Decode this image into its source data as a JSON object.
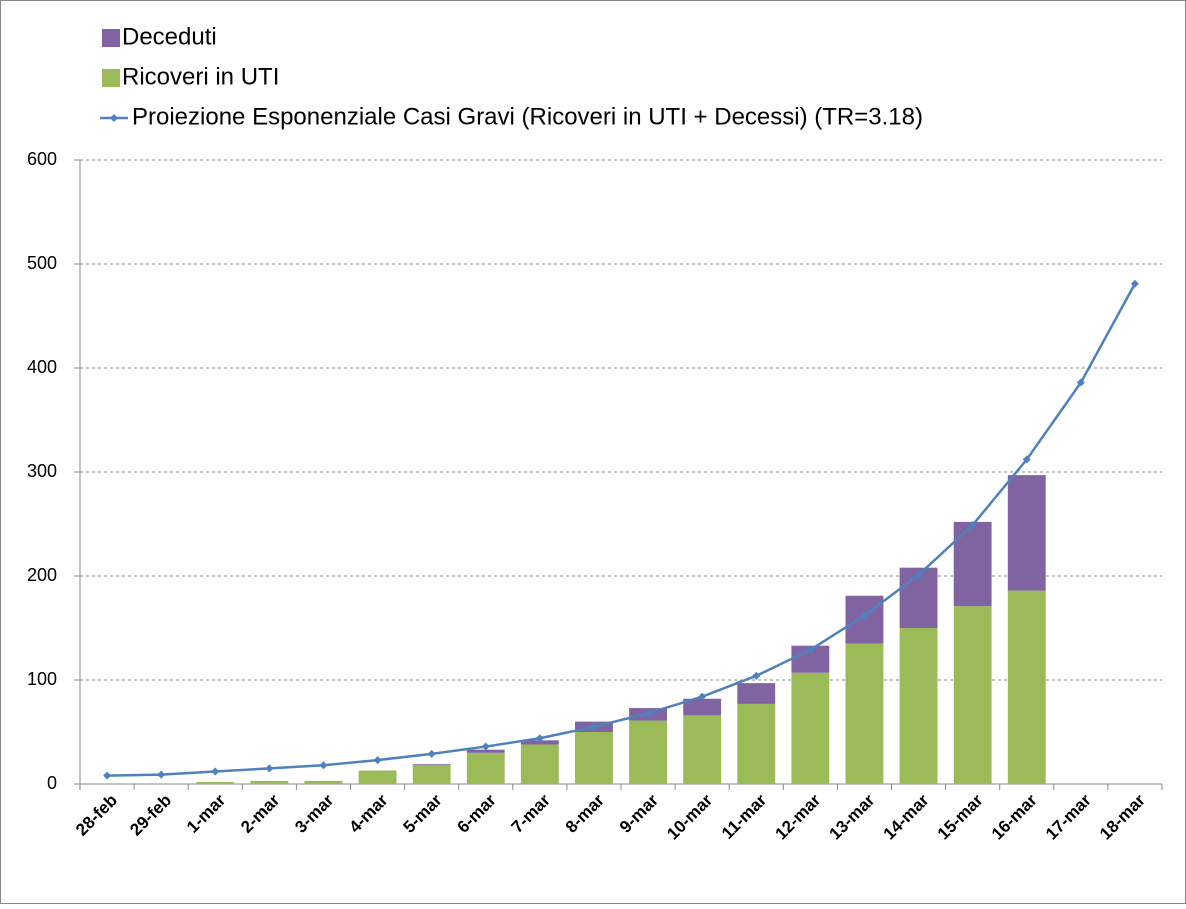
{
  "chart_data": {
    "type": "bar",
    "categories": [
      "28-feb",
      "29-feb",
      "1-mar",
      "2-mar",
      "3-mar",
      "4-mar",
      "5-mar",
      "6-mar",
      "7-mar",
      "8-mar",
      "9-mar",
      "10-mar",
      "11-mar",
      "12-mar",
      "13-mar",
      "14-mar",
      "15-mar",
      "16-mar",
      "17-mar",
      "18-mar"
    ],
    "series": [
      {
        "name": "Deceduti",
        "type": "bar",
        "color": "#8064a2",
        "values": [
          0,
          0,
          0,
          0,
          0,
          0,
          1,
          3,
          4,
          10,
          12,
          16,
          20,
          26,
          46,
          58,
          81,
          111,
          null,
          null
        ]
      },
      {
        "name": "Ricoveri in UTI",
        "type": "bar",
        "color": "#9bbb59",
        "values": [
          0,
          0,
          2,
          3,
          3,
          13,
          18,
          30,
          38,
          50,
          61,
          66,
          77,
          107,
          135,
          150,
          171,
          186,
          null,
          null
        ]
      },
      {
        "name": "Proiezione Esponenziale Casi Gravi (Ricoveri in UTI + Decessi) (TR=3.18)",
        "type": "line",
        "color": "#4f81bd",
        "values": [
          8,
          9,
          12,
          15,
          18,
          23,
          29,
          36,
          44,
          55,
          68,
          84,
          104,
          129,
          162,
          201,
          249,
          312,
          386,
          481
        ]
      }
    ],
    "ylim": [
      0,
      600
    ],
    "yticks": [
      0,
      100,
      200,
      300,
      400,
      500,
      600
    ],
    "grid": true,
    "stacked": true,
    "legend": "top-left"
  }
}
